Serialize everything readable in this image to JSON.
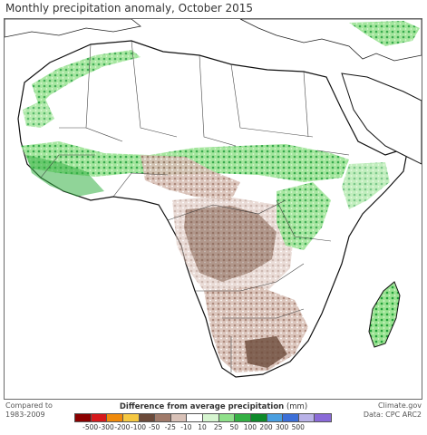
{
  "title": "Monthly precipitation anomaly, October 2015",
  "comparison_note": [
    "Compared to",
    "1983-2009"
  ],
  "credit": [
    "Climate.gov",
    "Data: CPC ARC2"
  ],
  "legend": {
    "title": "Difference from average precipitation",
    "unit": "(mm)",
    "colors": [
      "#8b0000",
      "#d7191c",
      "#f08a0b",
      "#f5c842",
      "#6b4a3a",
      "#a07a6a",
      "#d9c2b8",
      "#ffffff",
      "#d6f5d0",
      "#8fe08a",
      "#34b044",
      "#0e8a2a",
      "#4a9fe0",
      "#3c6fd8",
      "#b9b2e8",
      "#8a6ad8"
    ],
    "ticks": [
      "-500",
      "-300",
      "-200",
      "-100",
      "-50",
      "-25",
      "-10",
      "10",
      "25",
      "50",
      "100",
      "200",
      "300",
      "500"
    ]
  }
}
